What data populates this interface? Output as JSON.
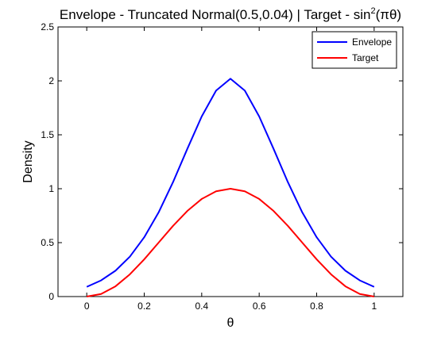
{
  "chart_data": {
    "type": "line",
    "title": "Envelope - Truncated Normal(0.5,0.04) | Target - sin",
    "title_superscript": "2",
    "title_suffix": "(πθ)",
    "xlabel": "θ",
    "ylabel": "Density",
    "xlim": [
      -0.1,
      1.1
    ],
    "ylim": [
      0,
      2.5
    ],
    "x_ticks": [
      0,
      0.2,
      0.4,
      0.6,
      0.8,
      1
    ],
    "x_tick_labels": [
      "0",
      "0.2",
      "0.4",
      "0.6",
      "0.8",
      "1"
    ],
    "y_ticks": [
      0,
      0.5,
      1,
      1.5,
      2,
      2.5
    ],
    "y_tick_labels": [
      "0",
      "0.5",
      "1",
      "1.5",
      "2",
      "2.5"
    ],
    "grid": false,
    "legend_position": "top-right",
    "x": [
      0,
      0.05,
      0.1,
      0.15,
      0.2,
      0.25,
      0.3,
      0.35,
      0.4,
      0.45,
      0.5,
      0.55,
      0.6,
      0.65,
      0.7,
      0.75,
      0.8,
      0.85,
      0.9,
      0.95,
      1
    ],
    "series": [
      {
        "name": "Envelope",
        "color": "#0000ff",
        "values": [
          0.09,
          0.15,
          0.24,
          0.37,
          0.55,
          0.78,
          1.06,
          1.37,
          1.67,
          1.91,
          2.02,
          1.91,
          1.67,
          1.37,
          1.06,
          0.78,
          0.55,
          0.37,
          0.24,
          0.15,
          0.09
        ]
      },
      {
        "name": "Target",
        "color": "#ff0000",
        "values": [
          0,
          0.024,
          0.095,
          0.206,
          0.345,
          0.5,
          0.655,
          0.794,
          0.905,
          0.976,
          1.0,
          0.976,
          0.905,
          0.794,
          0.655,
          0.5,
          0.345,
          0.206,
          0.095,
          0.024,
          0
        ]
      }
    ]
  }
}
